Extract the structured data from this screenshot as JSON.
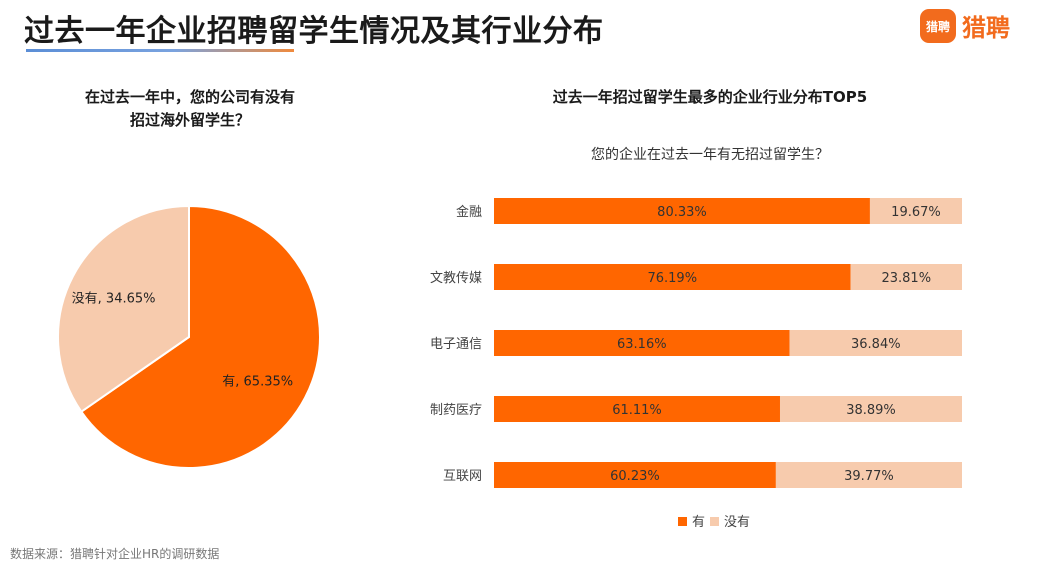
{
  "header": {
    "title": "过去一年企业招聘留学生情况及其行业分布",
    "logo_mark": "猎聘",
    "logo_text": "猎聘"
  },
  "colors": {
    "primary": "#ff6600",
    "secondary": "#f7cbad",
    "brand": "#f26b1d"
  },
  "chart_data": [
    {
      "type": "pie",
      "title_lines": [
        "在过去一年中，您的公司有没有",
        "招过海外留学生？"
      ],
      "slices": [
        {
          "label": "有",
          "value": 65.35,
          "value_text": "65.35%",
          "color": "#ff6600"
        },
        {
          "label": "没有",
          "value": 34.65,
          "value_text": "34.65%",
          "color": "#f7cbad"
        }
      ]
    },
    {
      "type": "bar",
      "orientation": "horizontal",
      "stacked": "percent",
      "title": "过去一年招过留学生最多的企业行业分布TOP5",
      "subtitle": "您的企业在过去一年有无招过留学生？",
      "categories": [
        "金融",
        "文教传媒",
        "电子通信",
        "制药医疗",
        "互联网"
      ],
      "series": [
        {
          "name": "有",
          "color": "#ff6600",
          "values": [
            80.33,
            76.19,
            63.16,
            61.11,
            60.23
          ],
          "labels": [
            "80.33%",
            "76.19%",
            "63.16%",
            "61.11%",
            "60.23%"
          ]
        },
        {
          "name": "没有",
          "color": "#f7cbad",
          "values": [
            19.67,
            23.81,
            36.84,
            38.89,
            39.77
          ],
          "labels": [
            "19.67%",
            "23.81%",
            "36.84%",
            "38.89%",
            "39.77%"
          ]
        }
      ],
      "xlim": [
        0,
        100
      ],
      "legend_position": "bottom"
    }
  ],
  "footer": {
    "source": "数据来源：猎聘针对企业HR的调研数据"
  }
}
